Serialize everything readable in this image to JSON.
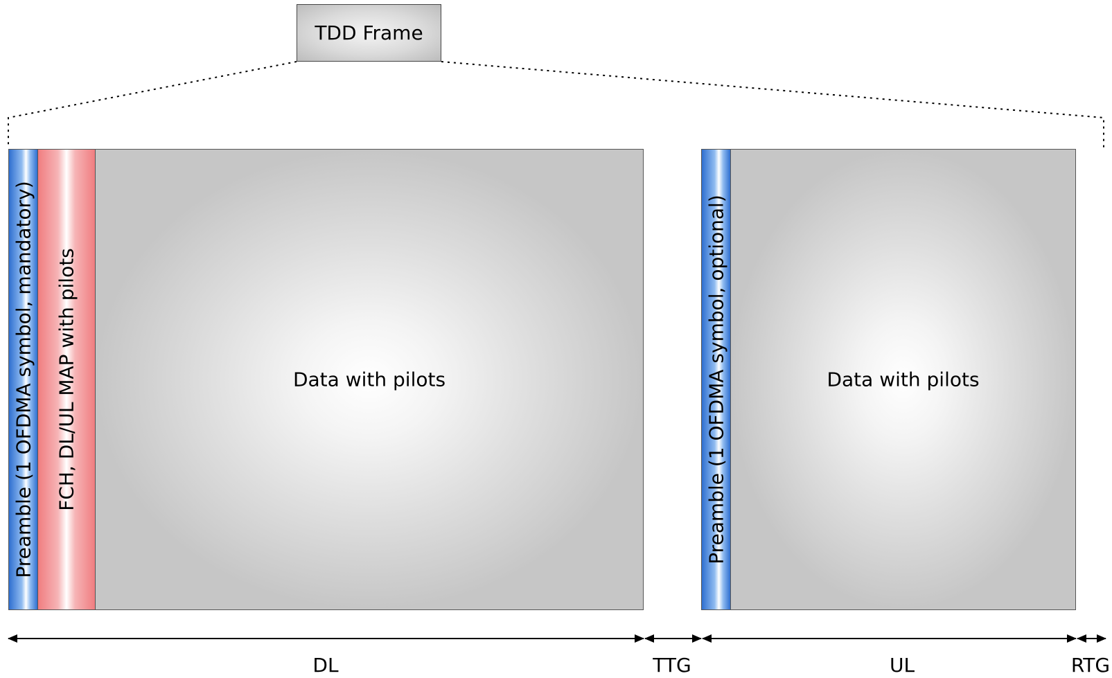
{
  "frame": {
    "title": "TDD Frame"
  },
  "downlink": {
    "preamble_label": "Preamble (1 OFDMA symbol, mandatory)",
    "fch_label": "FCH, DL/UL MAP with pilots",
    "data_label": "Data with pilots"
  },
  "uplink": {
    "preamble_label": "Preamble (1 OFDMA symbol, optional)",
    "data_label": "Data with pilots"
  },
  "segments": {
    "dl": "DL",
    "ttg": "TTG",
    "ul": "UL",
    "rtg": "RTG"
  },
  "colors": {
    "preamble": "#2f6fd0",
    "fch": "#f07d80",
    "data": "#c6c6c6"
  }
}
